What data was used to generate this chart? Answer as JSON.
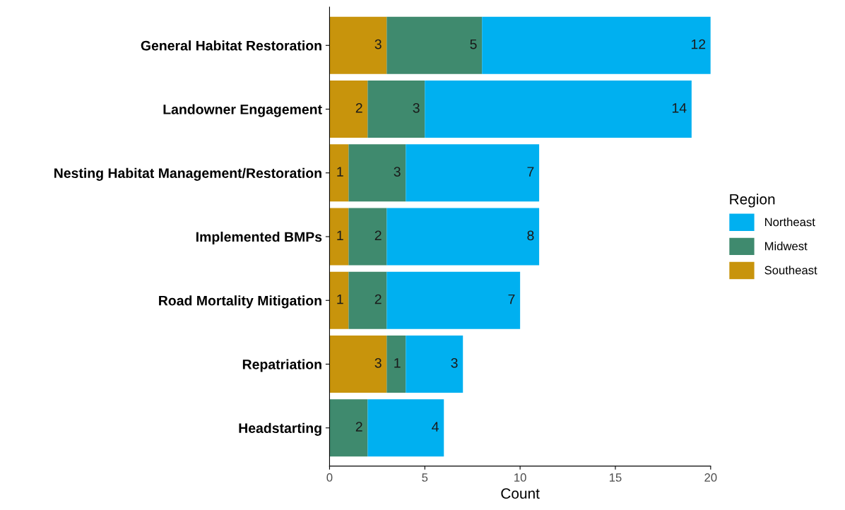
{
  "chart_data": {
    "type": "bar",
    "orientation": "horizontal",
    "stacked": true,
    "categories": [
      "General Habitat Restoration",
      "Landowner Engagement",
      "Nesting Habitat Management/Restoration",
      "Implemented BMPs",
      "Road Mortality Mitigation",
      "Repatriation",
      "Headstarting"
    ],
    "series": [
      {
        "name": "Southeast",
        "color": "#c8940c",
        "values": [
          3,
          2,
          1,
          1,
          1,
          3,
          null
        ]
      },
      {
        "name": "Midwest",
        "color": "#3f8a6e",
        "values": [
          5,
          3,
          3,
          2,
          2,
          1,
          2
        ]
      },
      {
        "name": "Northeast",
        "color": "#00b0f0",
        "values": [
          12,
          14,
          7,
          8,
          7,
          3,
          4
        ]
      }
    ],
    "xlabel": "Count",
    "legend_title": "Region",
    "legend": "right",
    "xlim": [
      0,
      20
    ],
    "xticks": [
      0,
      5,
      10,
      15,
      20
    ],
    "grid": false,
    "data_labels": true
  }
}
